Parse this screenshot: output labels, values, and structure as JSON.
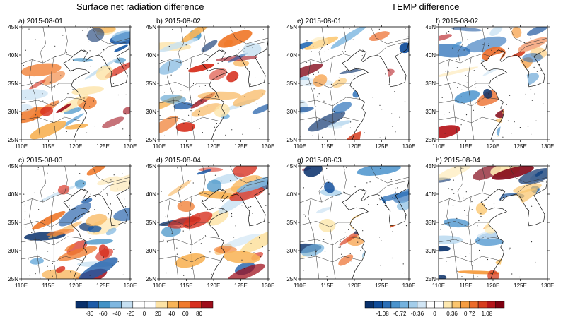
{
  "titles": {
    "left": "Surface net radiation difference",
    "right": "TEMP difference"
  },
  "panels": [
    {
      "label": "a) 2015-08-01",
      "group": "rad",
      "seed": 11
    },
    {
      "label": "b) 2015-08-02",
      "group": "rad",
      "seed": 23
    },
    {
      "label": "c) 2015-08-03",
      "group": "rad",
      "seed": 37
    },
    {
      "label": "d) 2015-08-04",
      "group": "rad",
      "seed": 41
    },
    {
      "label": "e) 2015-08-01",
      "group": "temp",
      "seed": 53
    },
    {
      "label": "f) 2015-08-02",
      "group": "temp",
      "seed": 67
    },
    {
      "label": "g) 2015-08-03",
      "group": "temp",
      "seed": 71
    },
    {
      "label": "h) 2015-08-04",
      "group": "temp",
      "seed": 89
    }
  ],
  "axes": {
    "lon_ticks": [
      "110E",
      "115E",
      "120E",
      "125E",
      "130E"
    ],
    "lat_ticks": [
      "25N",
      "30N",
      "35N",
      "40N",
      "45N"
    ],
    "lon_range": [
      110,
      130
    ],
    "lat_range": [
      25,
      45
    ]
  },
  "colorbars": {
    "radiation": {
      "labels": [
        "-80",
        "-60",
        "-40",
        "-20",
        "0",
        "20",
        "40",
        "60",
        "80"
      ],
      "colors": [
        "#08306b",
        "#1c5ba8",
        "#4292c6",
        "#7fb7e0",
        "#c6e0f2",
        "#ffffff",
        "#ffffff",
        "#fde3a5",
        "#f8b458",
        "#f07a2c",
        "#d7301f",
        "#9e0d1a"
      ]
    },
    "temperature": {
      "labels": [
        "-1.08",
        "-0.72",
        "-0.36",
        "0",
        "0.36",
        "0.72",
        "1.08"
      ],
      "colors": [
        "#08306b",
        "#0f4c9a",
        "#2a6fb8",
        "#4a93cd",
        "#74b2de",
        "#a3cdea",
        "#d2e6f5",
        "#ffffff",
        "#ffffff",
        "#fde8b0",
        "#fbc66e",
        "#f69d41",
        "#ec6b29",
        "#d63d1e",
        "#b5151a",
        "#7f0011"
      ]
    }
  },
  "colors": {
    "blue_dark": "#08306b",
    "red_dark": "#9e0d1a",
    "border": "#333333"
  }
}
